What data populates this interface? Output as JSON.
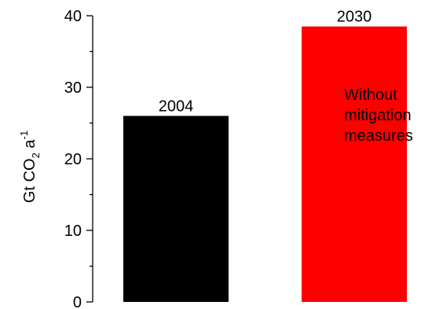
{
  "chart_data": {
    "type": "bar",
    "categories": [
      "2004",
      "2030"
    ],
    "values": [
      26,
      38.5
    ],
    "colors": [
      "#000000",
      "#ff0000"
    ],
    "ylabel": "Gt CO",
    "ylabel_sub": "2",
    "ylabel_rest": " a",
    "ylabel_sup": "-1",
    "ylim": [
      0,
      40
    ],
    "yticks": [
      "0",
      "10",
      "20",
      "30",
      "40"
    ],
    "annotation": [
      "Without",
      "mitigation",
      "measures"
    ],
    "grid": false,
    "legend": "none"
  }
}
